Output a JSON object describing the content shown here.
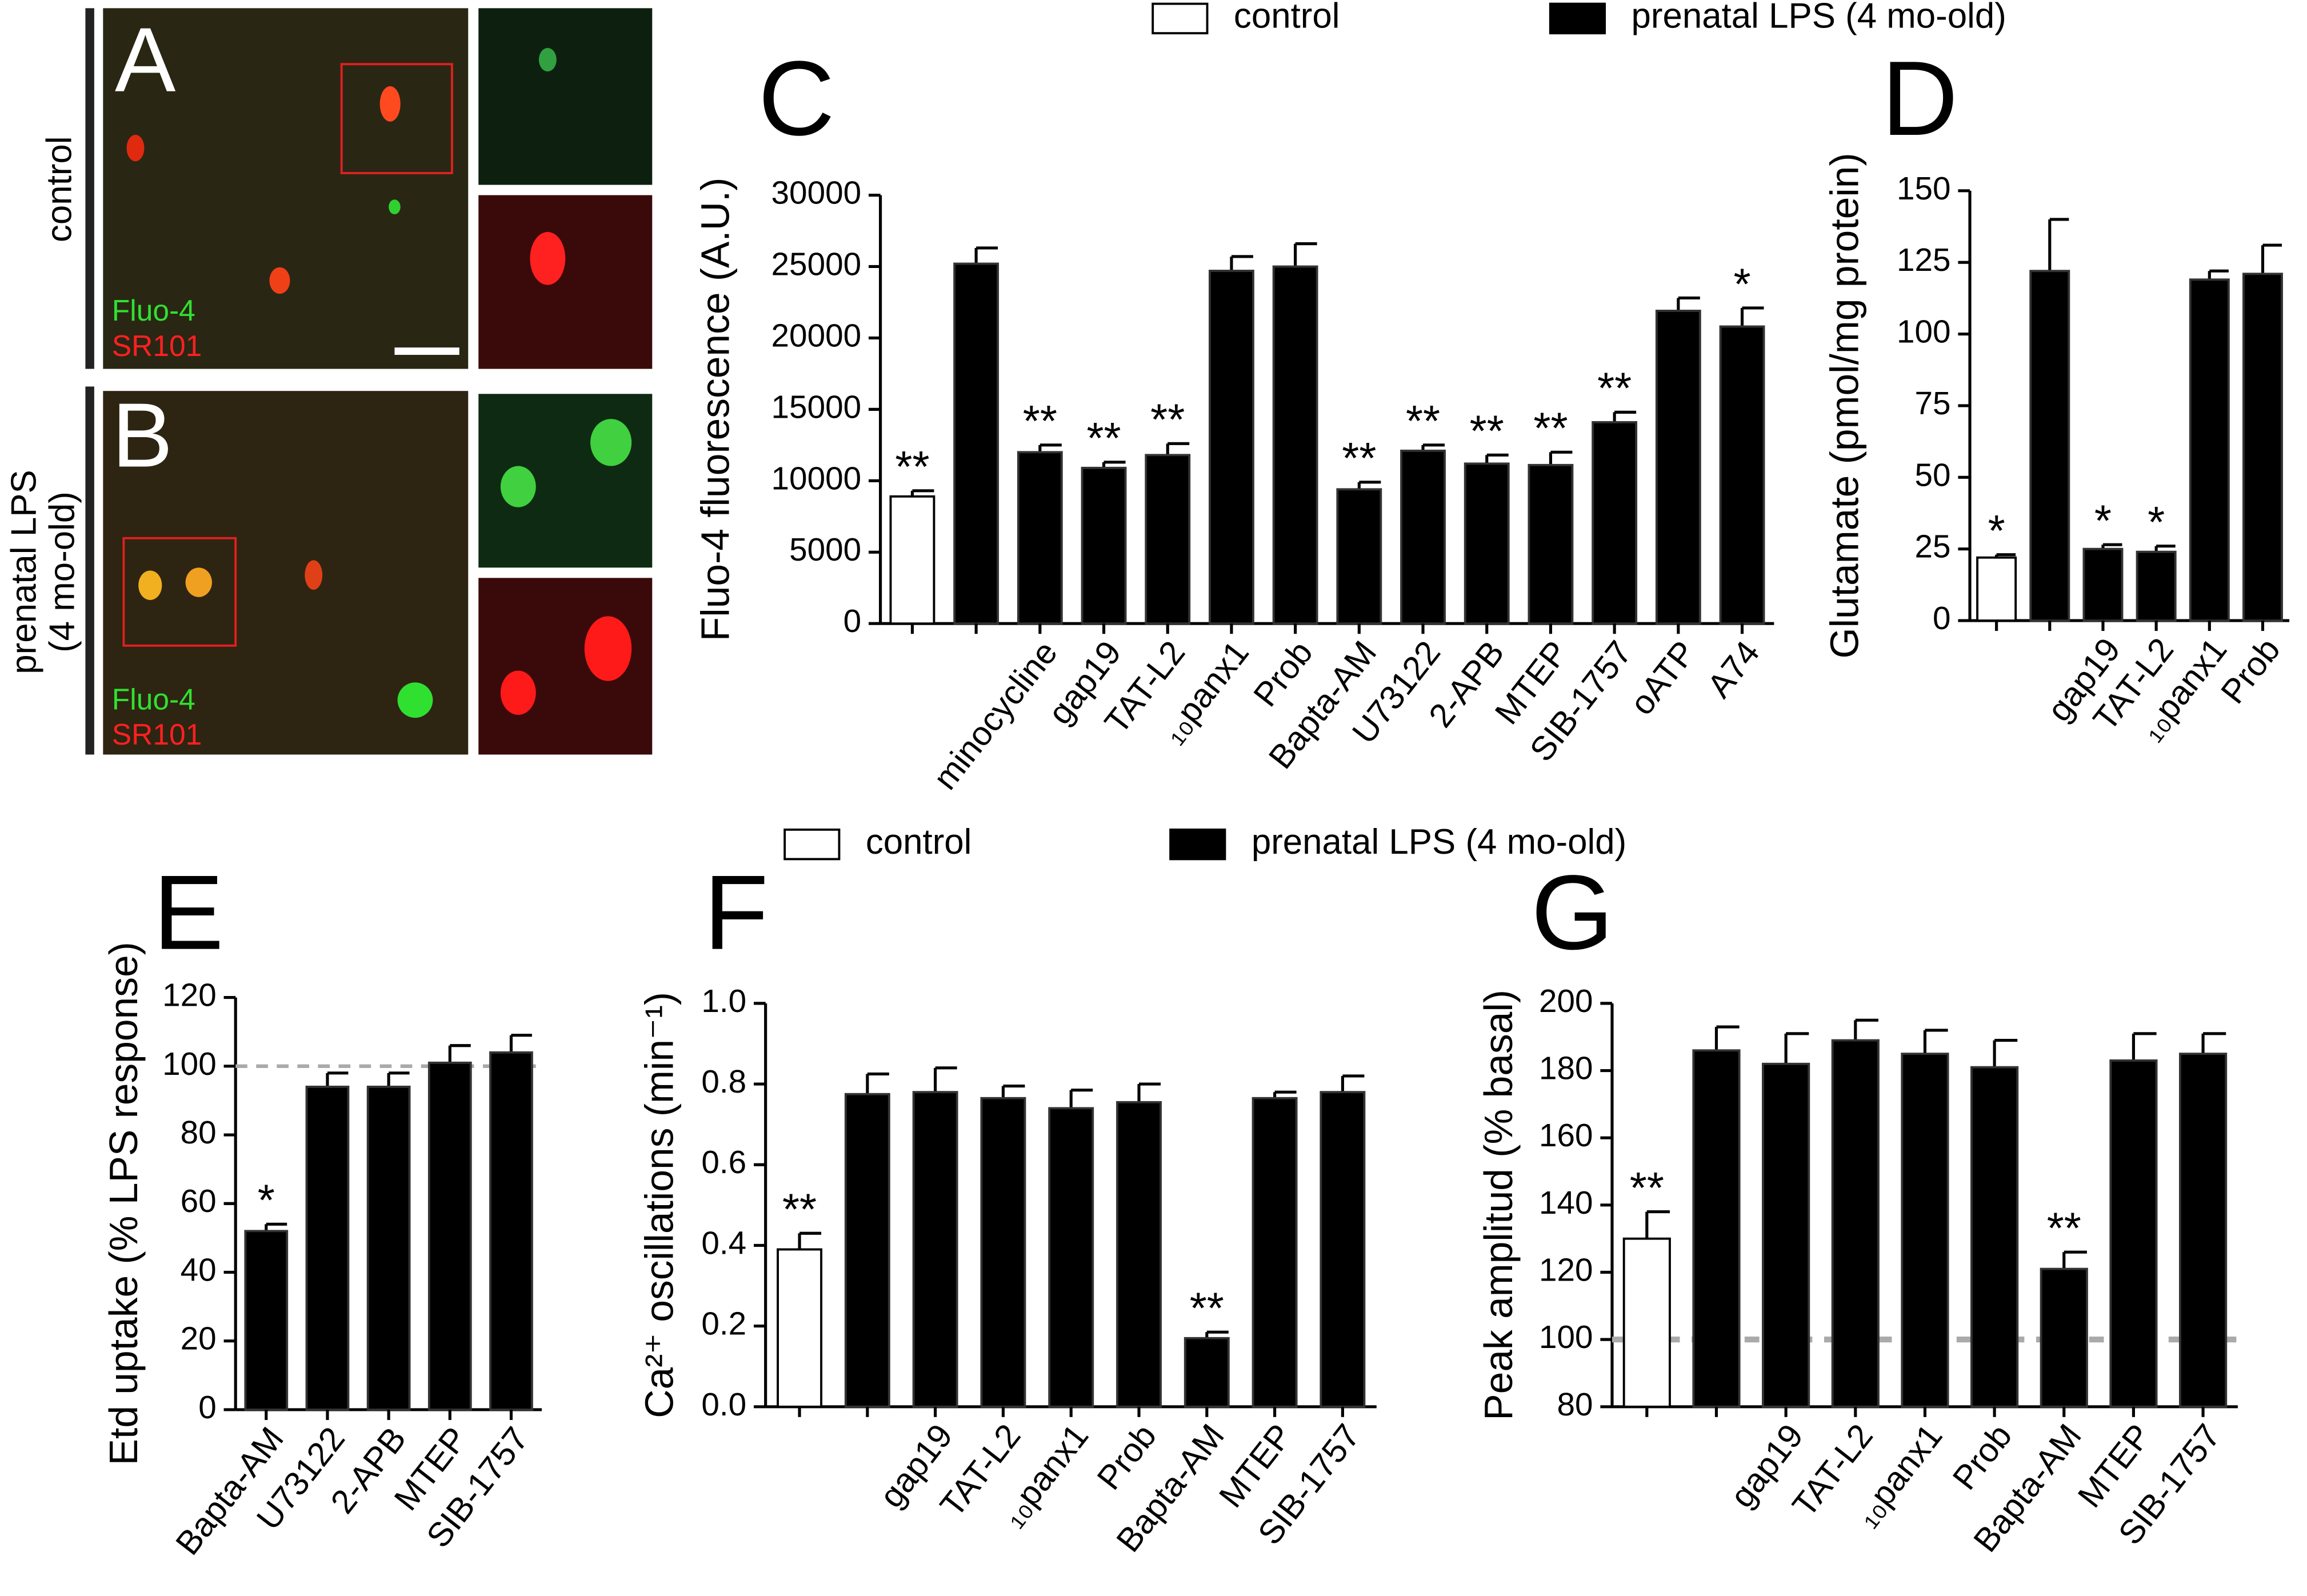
{
  "image_panels": [
    {
      "label": "A",
      "side_label": [
        "control"
      ],
      "stains": [
        "Fluo-4",
        "SR101"
      ]
    },
    {
      "label": "B",
      "side_label": [
        "prenatal LPS",
        "(4 mo-old)"
      ],
      "stains": [
        "Fluo-4",
        "SR101"
      ]
    }
  ],
  "legends": [
    {
      "entries": [
        {
          "name": "control",
          "color": "#ffffff"
        },
        {
          "name": "prenatal LPS (4 mo-old)",
          "color": "#000000"
        }
      ]
    },
    {
      "entries": [
        {
          "name": "control",
          "color": "#ffffff"
        },
        {
          "name": "prenatal LPS (4 mo-old)",
          "color": "#000000"
        }
      ]
    }
  ],
  "chart_data": [
    {
      "type": "bar",
      "panel_label": "C",
      "ylabel": "Fluo-4 fluorescence (A.U.)",
      "categories": [
        null,
        null,
        "minocycline",
        "gap19",
        "TAT-L2",
        "₁₀panx1",
        "Prob",
        "Bapta-AM",
        "U73122",
        "2-APB",
        "MTEP",
        "SIB-1757",
        "oATP",
        "A74"
      ],
      "values": [
        8900,
        25200,
        12000,
        10900,
        11800,
        24700,
        25000,
        9400,
        12100,
        11200,
        11100,
        14100,
        21900,
        20800
      ],
      "errors": [
        400,
        1100,
        500,
        400,
        800,
        1000,
        1600,
        500,
        400,
        600,
        900,
        700,
        900,
        1300
      ],
      "annotations": [
        "**",
        null,
        "**",
        "**",
        "**",
        null,
        null,
        "**",
        "**",
        "**",
        "**",
        "**",
        null,
        "*"
      ],
      "colors": [
        "#ffffff",
        "#000000",
        "#000000",
        "#000000",
        "#000000",
        "#000000",
        "#000000",
        "#000000",
        "#000000",
        "#000000",
        "#000000",
        "#000000",
        "#000000",
        "#000000"
      ],
      "ylim": [
        0,
        30000
      ],
      "yticks": [
        0,
        5000,
        10000,
        15000,
        20000,
        25000,
        30000
      ]
    },
    {
      "type": "bar",
      "panel_label": "D",
      "ylabel": "Glutamate (pmol/mg protein)",
      "categories": [
        null,
        null,
        "gap19",
        "TAT-L2",
        "₁₀panx1",
        "Prob"
      ],
      "values": [
        22,
        122,
        25,
        24,
        119,
        121
      ],
      "errors": [
        1,
        18,
        1.5,
        2,
        3,
        10
      ],
      "annotations": [
        "*",
        null,
        "*",
        "*",
        null,
        null
      ],
      "colors": [
        "#ffffff",
        "#000000",
        "#000000",
        "#000000",
        "#000000",
        "#000000"
      ],
      "ylim": [
        0,
        150
      ],
      "yticks": [
        0,
        25,
        50,
        75,
        100,
        125,
        150
      ]
    },
    {
      "type": "bar",
      "panel_label": "E",
      "ylabel": "Etd uptake (% LPS response)",
      "categories": [
        "Bapta-AM",
        "U73122",
        "2-APB",
        "MTEP",
        "SIB-1757"
      ],
      "values": [
        52,
        94,
        94,
        101,
        104
      ],
      "errors": [
        2,
        4,
        4,
        5,
        5
      ],
      "annotations": [
        "*",
        null,
        null,
        null,
        null
      ],
      "colors": [
        "#000000",
        "#000000",
        "#000000",
        "#000000",
        "#000000"
      ],
      "ref_line": 100,
      "ylim": [
        0,
        120
      ],
      "yticks": [
        0,
        20,
        40,
        60,
        80,
        100,
        120
      ]
    },
    {
      "type": "bar",
      "panel_label": "F",
      "ylabel": "Ca²⁺ oscillations (min⁻¹)",
      "categories": [
        null,
        null,
        "gap19",
        "TAT-L2",
        "₁₀panx1",
        "Prob",
        "Bapta-AM",
        "MTEP",
        "SIB-1757"
      ],
      "values": [
        0.39,
        0.775,
        0.78,
        0.765,
        0.74,
        0.755,
        0.17,
        0.765,
        0.78
      ],
      "errors": [
        0.04,
        0.05,
        0.06,
        0.03,
        0.045,
        0.045,
        0.015,
        0.015,
        0.04
      ],
      "annotations": [
        "**",
        null,
        null,
        null,
        null,
        null,
        "**",
        null,
        null
      ],
      "colors": [
        "#ffffff",
        "#000000",
        "#000000",
        "#000000",
        "#000000",
        "#000000",
        "#000000",
        "#000000",
        "#000000"
      ],
      "ylim": [
        0,
        1
      ],
      "yticks": [
        {
          "value": 0,
          "label": "0.0"
        },
        0.2,
        0.4,
        0.6,
        0.8,
        {
          "value": 1,
          "label": "1.0"
        }
      ]
    },
    {
      "type": "bar",
      "panel_label": "G",
      "ylabel": "Peak amplitud (% basal)",
      "categories": [
        null,
        null,
        "gap19",
        "TAT-L2",
        "₁₀panx1",
        "Prob",
        "Bapta-AM",
        "MTEP",
        "SIB-1757"
      ],
      "values": [
        130,
        186,
        182,
        189,
        185,
        181,
        121,
        183,
        185
      ],
      "errors": [
        8,
        7,
        9,
        6,
        7,
        8,
        5,
        8,
        6
      ],
      "annotations": [
        "**",
        null,
        null,
        null,
        null,
        null,
        "**",
        null,
        null
      ],
      "colors": [
        "#ffffff",
        "#000000",
        "#000000",
        "#000000",
        "#000000",
        "#000000",
        "#000000",
        "#000000",
        "#000000"
      ],
      "ref_line": 100,
      "ylim": [
        80,
        200
      ],
      "yticks": [
        80,
        100,
        120,
        140,
        160,
        180,
        200
      ]
    }
  ]
}
